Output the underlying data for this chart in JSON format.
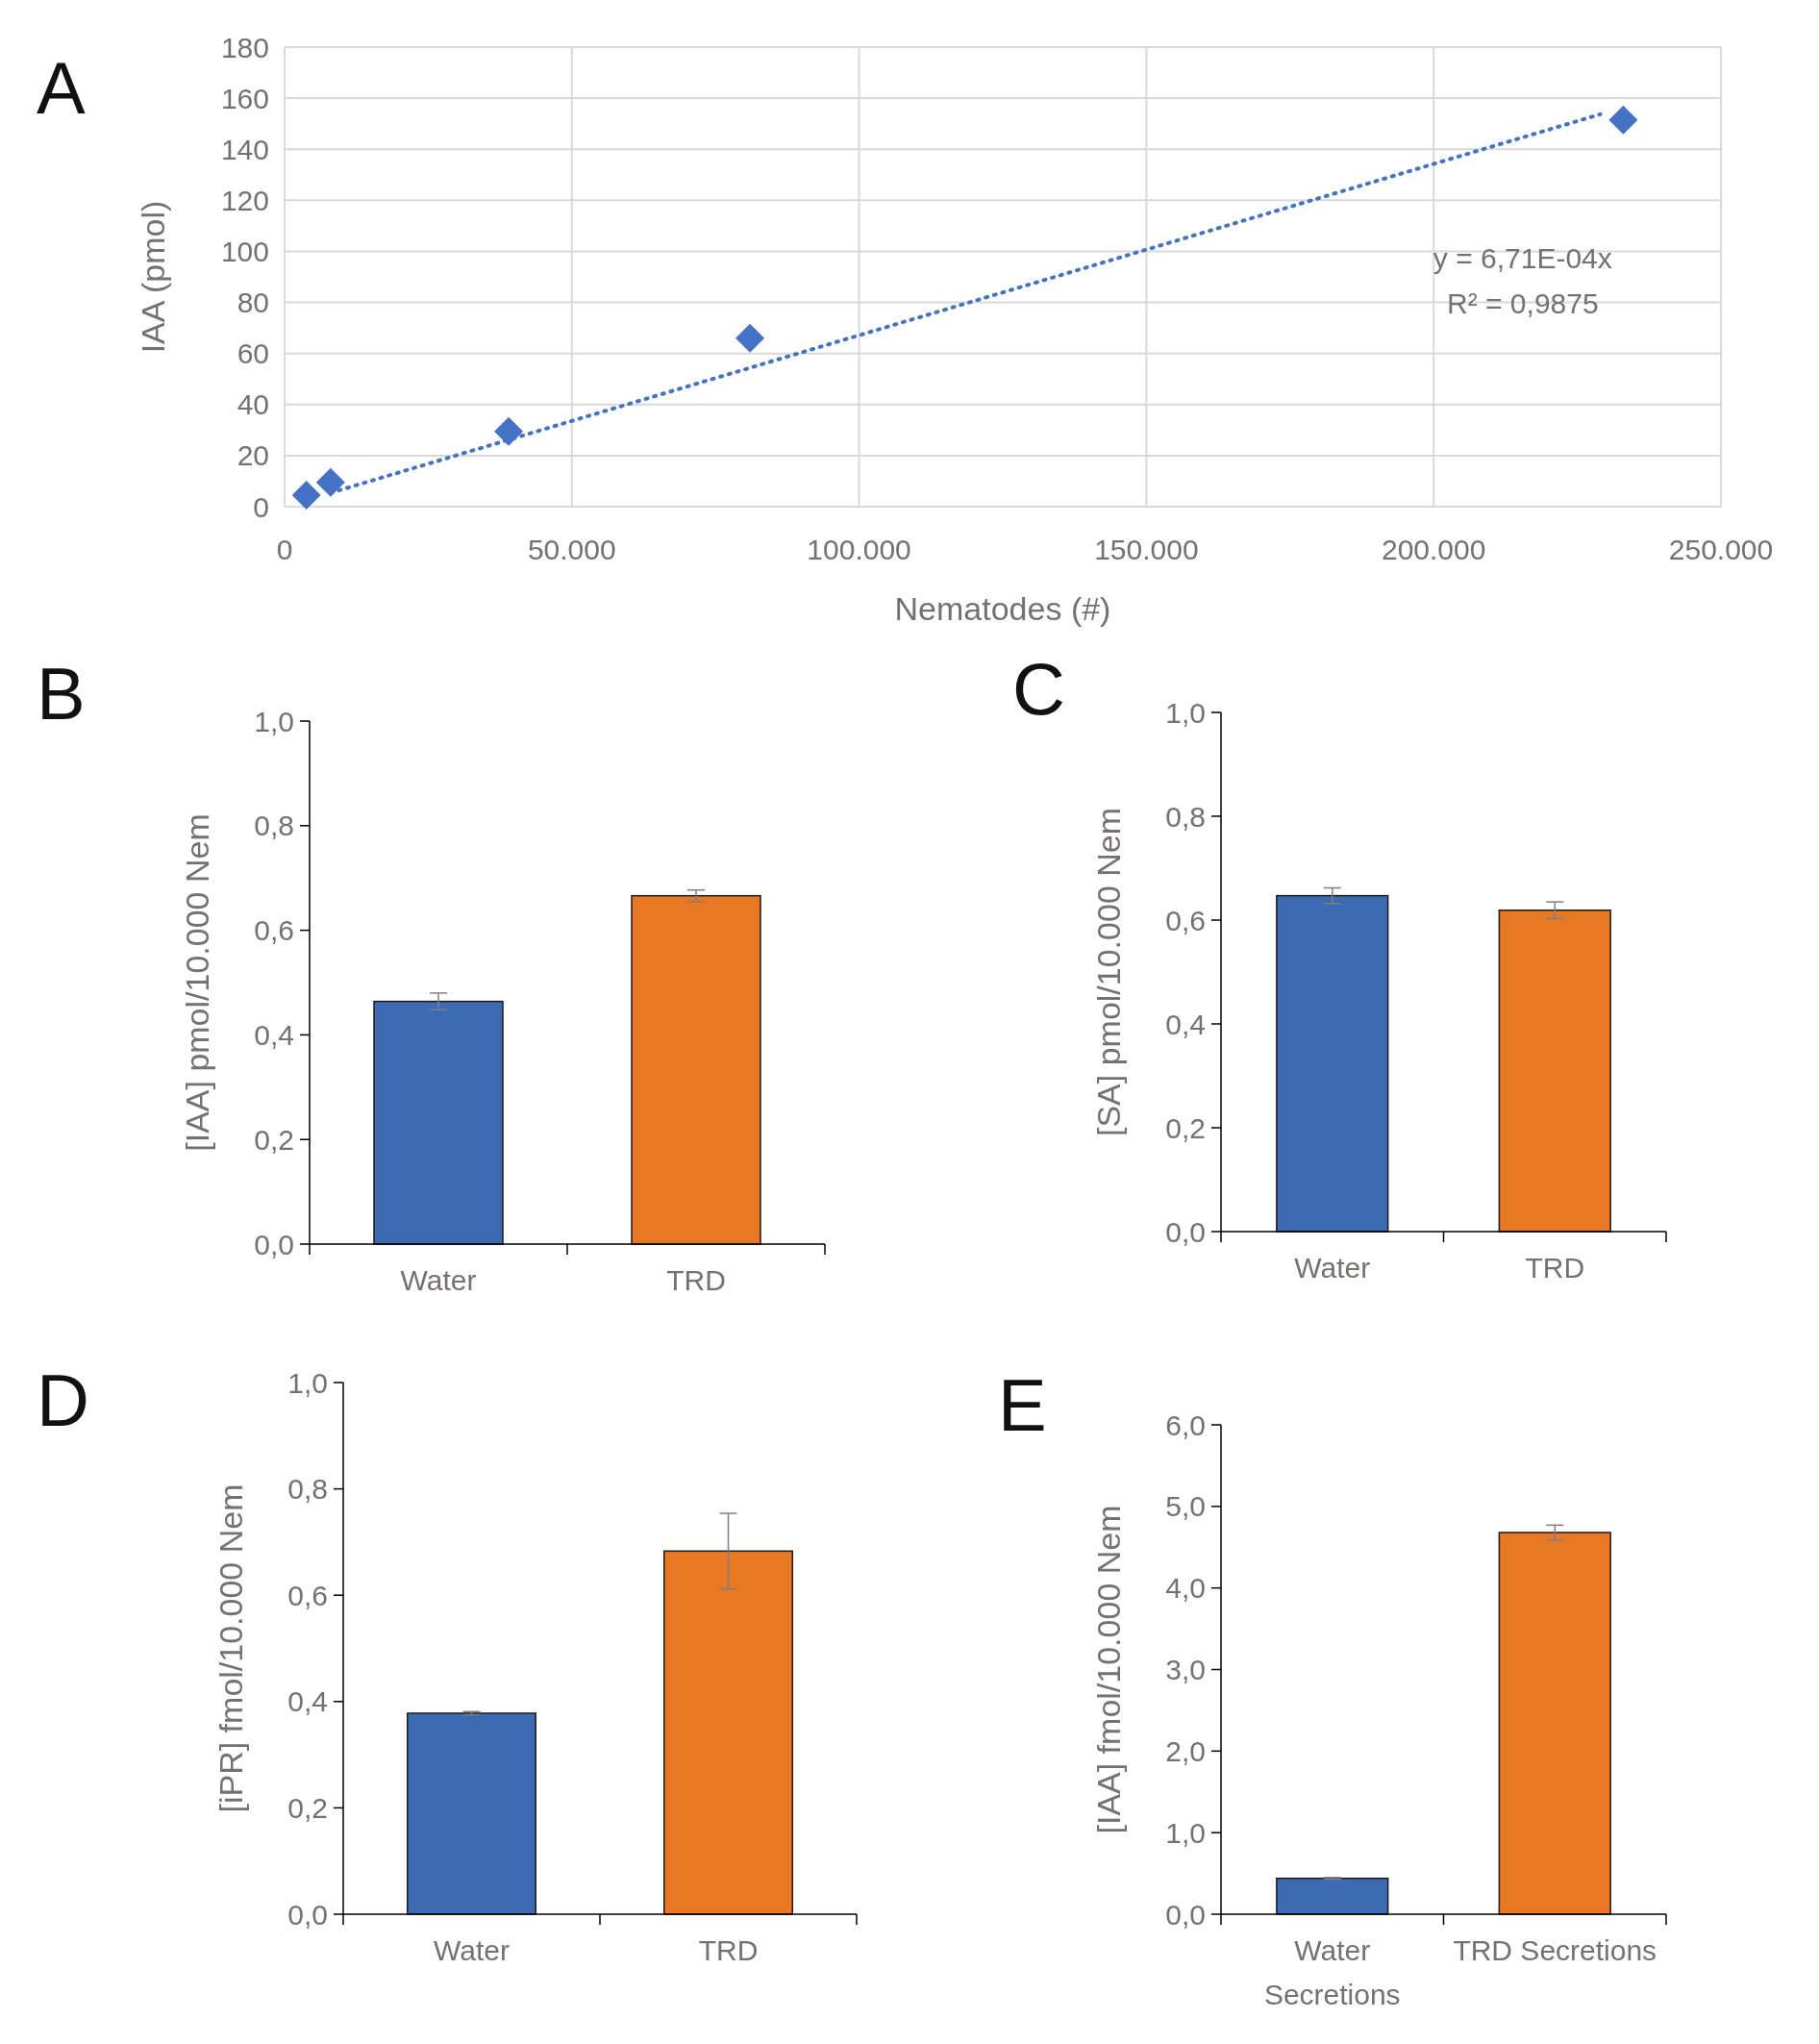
{
  "chart_data": [
    {
      "type": "scatter",
      "title": "A",
      "xlabel": "Nematodes (#)",
      "ylabel": "IAA (pmol)",
      "grid": true,
      "xlim": [
        0,
        250000
      ],
      "ylim": [
        0,
        180
      ],
      "xticks": [
        0,
        {
          "value": 50000,
          "label": "50.000"
        },
        {
          "value": 100000,
          "label": "100.000"
        },
        {
          "value": 150000,
          "label": "150.000"
        },
        {
          "value": 200000,
          "label": "200.000"
        },
        {
          "value": 250000,
          "label": "250.000"
        }
      ],
      "yticks": [
        0,
        20,
        40,
        60,
        80,
        100,
        120,
        140,
        160,
        180
      ],
      "series": [
        {
          "type": "scatter",
          "marker": "diamond",
          "color": "#4472c4",
          "x": [
            3800,
            8000,
            39000,
            81000,
            233000
          ],
          "values": [
            4.5,
            9.5,
            29.5,
            66,
            151.5
          ]
        },
        {
          "type": "line",
          "line_style": "dotted",
          "color": "#4472c4",
          "x": [
            8000,
            229000
          ],
          "values": [
            5.4,
            153.7
          ]
        }
      ],
      "annotations": [
        "y = 6,71E-04x",
        "R² = 0,9875"
      ]
    },
    {
      "type": "bar",
      "title": "B",
      "ylabel": "[IAA] pmol/10.000 Nem",
      "categories": [
        "Water",
        "TRD"
      ],
      "values": [
        0.464,
        0.666
      ],
      "errors": [
        0.016,
        0.011
      ],
      "colors": [
        "#3c6bb3",
        "#e97824"
      ],
      "ylim": [
        0,
        1
      ],
      "yticks": [
        {
          "value": 0,
          "label": "0,0"
        },
        {
          "value": 0.2,
          "label": "0,2"
        },
        {
          "value": 0.4,
          "label": "0,4"
        },
        {
          "value": 0.6,
          "label": "0,6"
        },
        {
          "value": 0.8,
          "label": "0,8"
        },
        {
          "value": 1,
          "label": "1,0"
        }
      ]
    },
    {
      "type": "bar",
      "title": "C",
      "ylabel": "[SA] pmol/10.000 Nem",
      "categories": [
        "Water",
        "TRD"
      ],
      "values": [
        0.647,
        0.619
      ],
      "errors": [
        0.015,
        0.016
      ],
      "colors": [
        "#3c6bb3",
        "#e97824"
      ],
      "ylim": [
        0,
        1
      ],
      "yticks": [
        {
          "value": 0,
          "label": "0,0"
        },
        {
          "value": 0.2,
          "label": "0,2"
        },
        {
          "value": 0.4,
          "label": "0,4"
        },
        {
          "value": 0.6,
          "label": "0,6"
        },
        {
          "value": 0.8,
          "label": "0,8"
        },
        {
          "value": 1,
          "label": "1,0"
        }
      ]
    },
    {
      "type": "bar",
      "title": "D",
      "ylabel": "[iPR] fmol/10.000 Nem",
      "categories": [
        "Water",
        "TRD"
      ],
      "values": [
        0.378,
        0.683
      ],
      "errors": [
        0.003,
        0.071
      ],
      "colors": [
        "#3c6bb3",
        "#e97824"
      ],
      "ylim": [
        0,
        1
      ],
      "yticks": [
        {
          "value": 0,
          "label": "0,0"
        },
        {
          "value": 0.2,
          "label": "0,2"
        },
        {
          "value": 0.4,
          "label": "0,4"
        },
        {
          "value": 0.6,
          "label": "0,6"
        },
        {
          "value": 0.8,
          "label": "0,8"
        },
        {
          "value": 1,
          "label": "1,0"
        }
      ]
    },
    {
      "type": "bar",
      "title": "E",
      "ylabel": "[IAA] fmol/10.000 Nem",
      "categories": [
        "Water Secretions",
        "TRD Secretions"
      ],
      "values": [
        0.44,
        4.68
      ],
      "errors": [
        0.01,
        0.09
      ],
      "colors": [
        "#3c6bb3",
        "#e97824"
      ],
      "ylim": [
        0,
        6
      ],
      "yticks": [
        {
          "value": 0,
          "label": "0,0"
        },
        {
          "value": 1,
          "label": "1,0"
        },
        {
          "value": 2,
          "label": "2,0"
        },
        {
          "value": 3,
          "label": "3,0"
        },
        {
          "value": 4,
          "label": "4,0"
        },
        {
          "value": 5,
          "label": "5,0"
        },
        {
          "value": 6,
          "label": "6,0"
        }
      ]
    }
  ]
}
